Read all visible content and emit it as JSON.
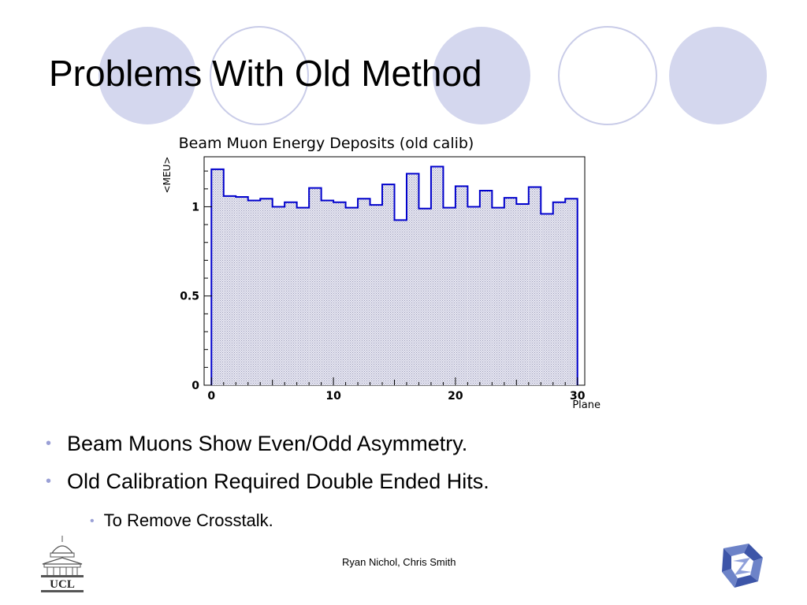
{
  "slide": {
    "title": "Problems With Old Method",
    "bullets": [
      "Beam Muons Show Even/Odd Asymmetry.",
      "Old Calibration Required Double Ended Hits."
    ],
    "sub_bullets": [
      "To Remove Crosstalk."
    ],
    "footer": "Ryan Nichol, Chris Smith",
    "logo_left_text": "UCL",
    "colors": {
      "circle_fill": "#d4d7ee",
      "circle_stroke": "#c9cce8",
      "bullet": "#9aa0d6",
      "histogram": "#0000cc"
    }
  },
  "chart_data": {
    "type": "bar",
    "style": "step-histogram",
    "title": "Beam Muon Energy Deposits (old calib)",
    "xlabel": "Plane",
    "ylabel": "<MEU>",
    "xlim": [
      -0.6,
      30.6
    ],
    "ylim": [
      0,
      1.28
    ],
    "x_ticks": [
      0,
      10,
      20,
      30
    ],
    "x_tick_labels": [
      "0",
      "10",
      "20",
      "30"
    ],
    "y_ticks": [
      0,
      0.5,
      1
    ],
    "y_tick_labels": [
      "0",
      "0.5",
      "1"
    ],
    "grid": false,
    "bin_edges_start": 0,
    "bin_width": 1,
    "values": [
      1.21,
      1.06,
      1.055,
      1.035,
      1.045,
      1.0,
      1.025,
      0.995,
      1.105,
      1.035,
      1.025,
      0.995,
      1.045,
      1.01,
      1.125,
      0.925,
      1.185,
      0.99,
      1.225,
      0.995,
      1.115,
      1.0,
      1.09,
      0.995,
      1.05,
      1.015,
      1.11,
      0.96,
      1.025,
      1.045
    ]
  }
}
